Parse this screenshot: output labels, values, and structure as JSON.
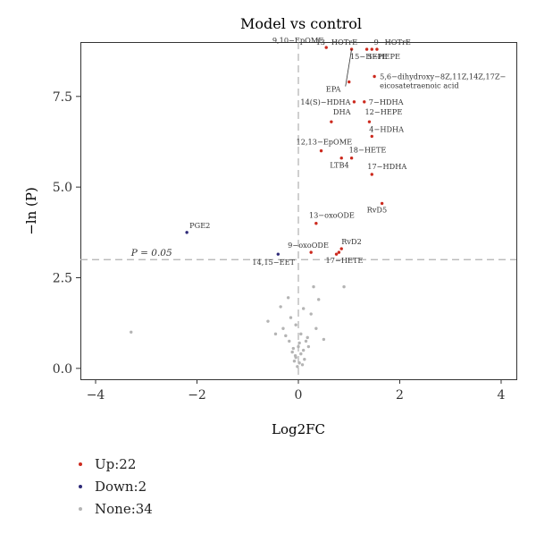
{
  "chart_data": {
    "type": "scatter",
    "title": "Model vs control",
    "xlabel": "Log2FC",
    "ylabel": "−ln (P)",
    "xlim": [
      -4.3,
      4.3
    ],
    "ylim": [
      -0.3,
      9.0
    ],
    "xticks": [
      -4,
      -2,
      0,
      2,
      4
    ],
    "yticks": [
      0.0,
      2.5,
      5.0,
      7.5
    ],
    "ytick_labels": [
      "0.0",
      "2.5",
      "5.0",
      "7.5"
    ],
    "grid": false,
    "threshold": {
      "y": 3.0,
      "label": "P = 0.05"
    },
    "vertical_ref": {
      "x": 0
    },
    "colors": {
      "up": "#cc2a1e",
      "down": "#2e2a78",
      "none": "#b4b4b4",
      "ref": "#b0b0b0"
    },
    "series": [
      {
        "name": "Up",
        "points": [
          {
            "x": 0.55,
            "y": 8.85,
            "label": "9,10−EpOME"
          },
          {
            "x": 1.05,
            "y": 8.8,
            "label": "13−HOTrE"
          },
          {
            "x": 1.35,
            "y": 8.8,
            "label": "9−HOTrE"
          },
          {
            "x": 1.45,
            "y": 8.8,
            "label": "5−HEPE"
          },
          {
            "x": 1.55,
            "y": 8.8,
            "label": "15−HEPE"
          },
          {
            "x": 1.5,
            "y": 8.05,
            "label": "5,6−dihydroxy−8Z,11Z,14Z,17Z−eicosatetraenoic acid"
          },
          {
            "x": 1.1,
            "y": 7.35,
            "label": "14(S)−HDHA"
          },
          {
            "x": 1.3,
            "y": 7.35,
            "label": "7−HDHA"
          },
          {
            "x": 0.65,
            "y": 6.8,
            "label": "DHA"
          },
          {
            "x": 1.4,
            "y": 6.8,
            "label": "12−HEPE"
          },
          {
            "x": 1.45,
            "y": 6.4,
            "label": "4−HDHA"
          },
          {
            "x": 0.45,
            "y": 6.0,
            "label": "12,13−EpOME"
          },
          {
            "x": 1.05,
            "y": 5.8,
            "label": "18−HETE"
          },
          {
            "x": 0.85,
            "y": 5.8,
            "label": "LTB4"
          },
          {
            "x": 1.45,
            "y": 5.35,
            "label": "17−HDHA"
          },
          {
            "x": 1.65,
            "y": 4.55,
            "label": "RvD5"
          },
          {
            "x": 0.35,
            "y": 4.0,
            "label": "13−oxoODE"
          },
          {
            "x": 0.85,
            "y": 3.3,
            "label": "RvD2"
          },
          {
            "x": 0.8,
            "y": 3.2,
            "label": ""
          },
          {
            "x": 0.25,
            "y": 3.2,
            "label": "9−oxoODE"
          },
          {
            "x": 0.75,
            "y": 3.15,
            "label": "17−HETE"
          },
          {
            "x": 1.0,
            "y": 7.9,
            "label": "EPA"
          }
        ]
      },
      {
        "name": "Down",
        "points": [
          {
            "x": -2.2,
            "y": 3.75,
            "label": "PGE2"
          },
          {
            "x": -0.4,
            "y": 3.15,
            "label": "14,15−EET"
          }
        ]
      },
      {
        "name": "None",
        "points": [
          {
            "x": -3.3,
            "y": 1.0
          },
          {
            "x": -0.6,
            "y": 1.3
          },
          {
            "x": -0.35,
            "y": 1.7
          },
          {
            "x": -0.2,
            "y": 1.95
          },
          {
            "x": 0.1,
            "y": 1.65
          },
          {
            "x": 0.3,
            "y": 2.25
          },
          {
            "x": 0.25,
            "y": 1.5
          },
          {
            "x": 0.35,
            "y": 1.1
          },
          {
            "x": -0.3,
            "y": 1.1
          },
          {
            "x": -0.25,
            "y": 0.9
          },
          {
            "x": -0.15,
            "y": 1.4
          },
          {
            "x": -0.05,
            "y": 1.2
          },
          {
            "x": 0.05,
            "y": 0.95
          },
          {
            "x": 0.15,
            "y": 0.75
          },
          {
            "x": 0.0,
            "y": 0.6
          },
          {
            "x": -0.1,
            "y": 0.55
          },
          {
            "x": 0.1,
            "y": 0.5
          },
          {
            "x": 0.05,
            "y": 0.4
          },
          {
            "x": -0.05,
            "y": 0.3
          },
          {
            "x": 0.12,
            "y": 0.25
          },
          {
            "x": -0.08,
            "y": 0.2
          },
          {
            "x": 0.02,
            "y": 0.15
          },
          {
            "x": -0.02,
            "y": 0.05
          },
          {
            "x": 0.08,
            "y": 0.1
          },
          {
            "x": -0.12,
            "y": 0.45
          },
          {
            "x": 0.2,
            "y": 0.6
          },
          {
            "x": -0.18,
            "y": 0.75
          },
          {
            "x": 0.18,
            "y": 0.85
          },
          {
            "x": 0.9,
            "y": 2.25
          },
          {
            "x": 0.5,
            "y": 0.8
          },
          {
            "x": -0.45,
            "y": 0.95
          },
          {
            "x": 0.4,
            "y": 1.9
          },
          {
            "x": 0.02,
            "y": 0.7
          },
          {
            "x": -0.06,
            "y": 0.35
          }
        ]
      }
    ],
    "legend": {
      "position": "bottom-left",
      "items": [
        {
          "key": "up",
          "text": "Up:22"
        },
        {
          "key": "down",
          "text": "Down:2"
        },
        {
          "key": "none",
          "text": "None:34"
        }
      ]
    }
  }
}
